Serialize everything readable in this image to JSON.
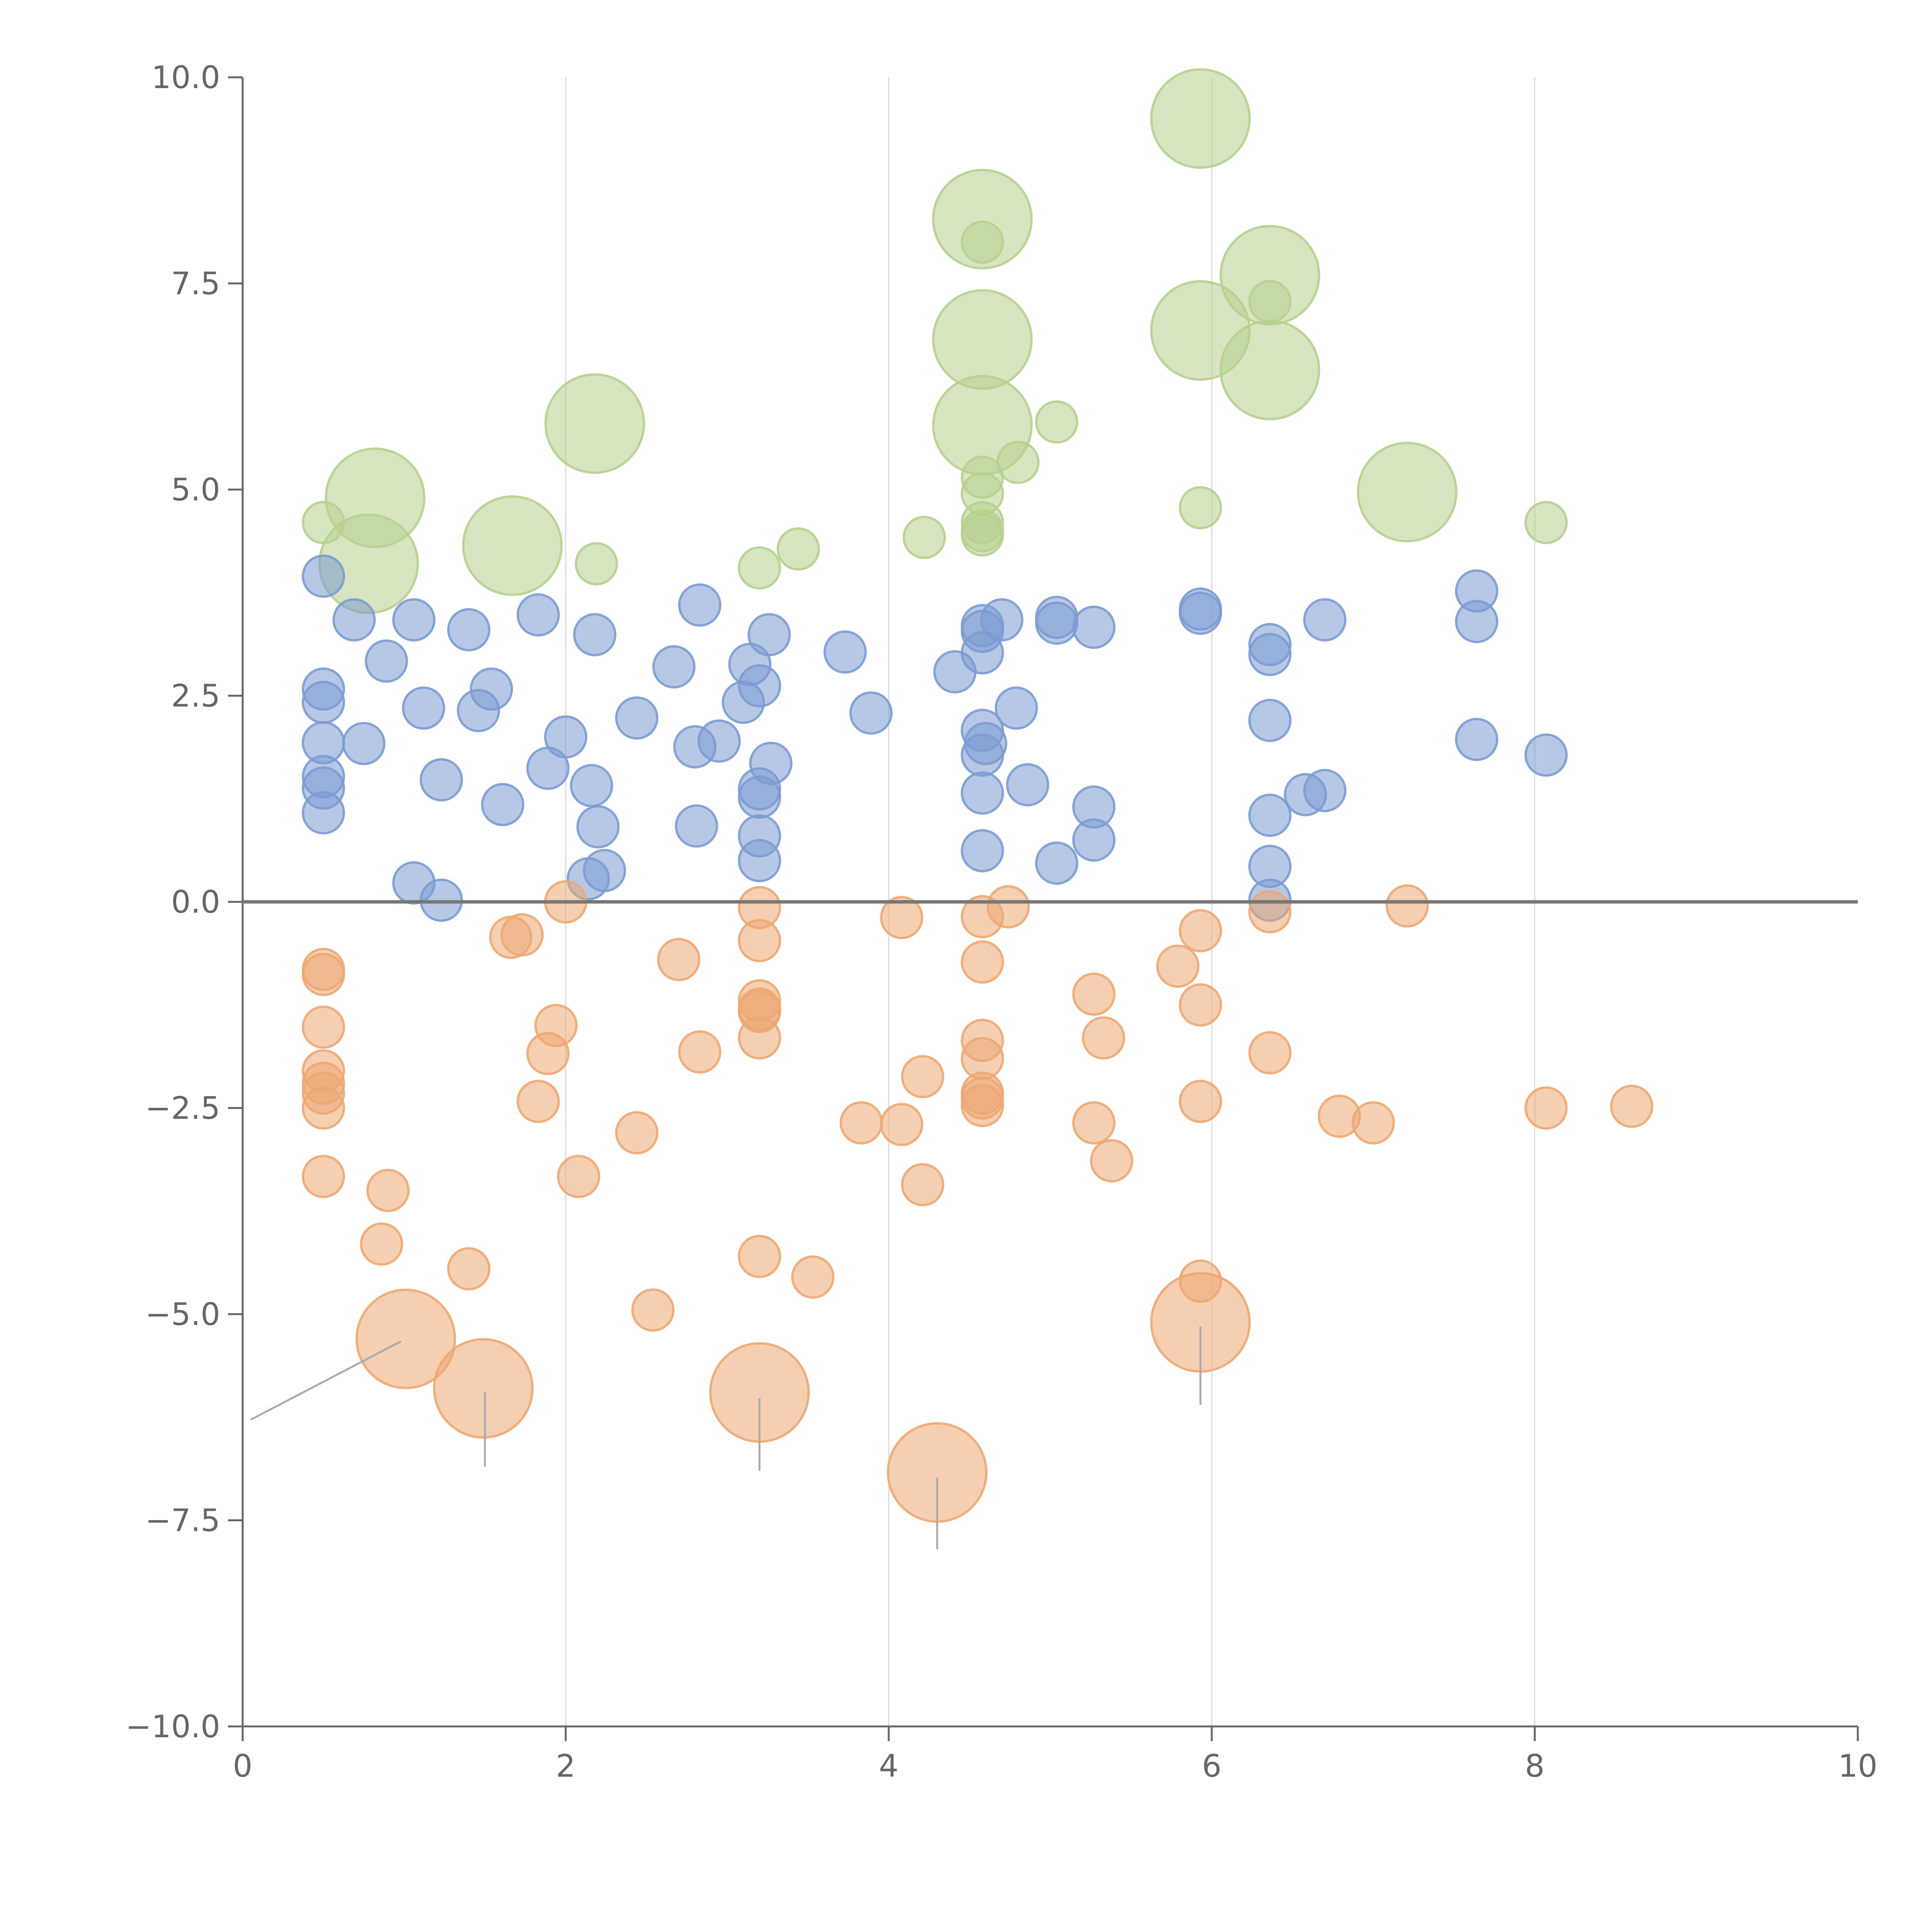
{
  "chart_data": {
    "type": "scatter",
    "title": "",
    "xlabel": "",
    "ylabel": "",
    "xlim": [
      0,
      10
    ],
    "ylim": [
      -10,
      10
    ],
    "grid": "vertical",
    "x_ticks": [
      "0",
      "2",
      "4",
      "6",
      "8",
      "10"
    ],
    "x_tick_values": [
      0,
      2,
      4,
      6,
      8,
      10
    ],
    "y_ticks": [
      "10.0",
      "7.5",
      "5.0",
      "2.5",
      "0.0",
      "−2.5",
      "−5.0",
      "−7.5",
      "−10.0"
    ],
    "y_tick_values": [
      10,
      7.5,
      5,
      2.5,
      0,
      -2.5,
      -5,
      -7.5,
      -10
    ],
    "reference_line_y": 0,
    "colors": {
      "green": "#b6d08e",
      "blue": "#7b9bd1",
      "orange": "#eda772",
      "axis": "#666666",
      "grid": "#d9d9d9",
      "zero_line": "#777777",
      "leader": "#aaaaaa"
    },
    "series": [
      {
        "name": "green",
        "color": "#b6d08e",
        "points": [
          [
            0.5,
            4.6,
            1
          ],
          [
            0.82,
            4.9,
            2.4
          ],
          [
            0.78,
            4.1,
            2.4
          ],
          [
            1.67,
            4.32,
            2.4
          ],
          [
            2.18,
            5.8,
            2.4
          ],
          [
            2.19,
            4.1,
            1
          ],
          [
            3.2,
            4.05,
            1
          ],
          [
            3.44,
            4.28,
            1
          ],
          [
            4.22,
            4.42,
            1
          ],
          [
            4.58,
            8.28,
            2.4
          ],
          [
            4.58,
            8.0,
            1
          ],
          [
            4.58,
            6.82,
            2.4
          ],
          [
            4.58,
            5.78,
            2.4
          ],
          [
            4.58,
            5.15,
            1
          ],
          [
            4.58,
            4.95,
            1
          ],
          [
            4.58,
            4.6,
            1
          ],
          [
            4.58,
            4.5,
            1
          ],
          [
            4.58,
            4.45,
            1
          ],
          [
            4.8,
            5.33,
            1
          ],
          [
            5.04,
            5.82,
            1
          ],
          [
            5.93,
            9.5,
            2.4
          ],
          [
            5.93,
            6.93,
            2.4
          ],
          [
            5.93,
            4.78,
            1
          ],
          [
            6.36,
            7.6,
            2.4
          ],
          [
            6.36,
            7.28,
            1
          ],
          [
            6.36,
            6.45,
            2.4
          ],
          [
            7.21,
            4.97,
            2.4
          ],
          [
            8.07,
            4.6,
            1
          ]
        ]
      },
      {
        "name": "blue",
        "color": "#7b9bd1",
        "points": [
          [
            0.5,
            3.95,
            1
          ],
          [
            0.5,
            2.58,
            1
          ],
          [
            0.5,
            2.42,
            1
          ],
          [
            0.5,
            1.93,
            1
          ],
          [
            0.5,
            1.52,
            1
          ],
          [
            0.5,
            1.38,
            1
          ],
          [
            0.5,
            1.08,
            1
          ],
          [
            0.69,
            3.42,
            1
          ],
          [
            0.75,
            1.92,
            1
          ],
          [
            0.89,
            2.92,
            1
          ],
          [
            1.06,
            3.42,
            1
          ],
          [
            1.06,
            0.23,
            1
          ],
          [
            1.12,
            2.35,
            1
          ],
          [
            1.23,
            1.48,
            1
          ],
          [
            1.23,
            0.02,
            1
          ],
          [
            1.4,
            3.3,
            1
          ],
          [
            1.46,
            2.32,
            1
          ],
          [
            1.54,
            2.58,
            1
          ],
          [
            1.61,
            1.18,
            1
          ],
          [
            1.83,
            3.48,
            1
          ],
          [
            1.89,
            1.62,
            1
          ],
          [
            2.0,
            2.0,
            1
          ],
          [
            2.14,
            0.28,
            1
          ],
          [
            2.16,
            1.41,
            1
          ],
          [
            2.18,
            3.24,
            1
          ],
          [
            2.2,
            0.91,
            1
          ],
          [
            2.24,
            0.38,
            1
          ],
          [
            2.44,
            2.23,
            1
          ],
          [
            2.67,
            2.85,
            1
          ],
          [
            2.8,
            1.88,
            1
          ],
          [
            2.81,
            0.92,
            1
          ],
          [
            2.83,
            3.6,
            1
          ],
          [
            2.95,
            1.95,
            1
          ],
          [
            3.1,
            2.42,
            1
          ],
          [
            3.14,
            2.88,
            1
          ],
          [
            3.2,
            2.62,
            1
          ],
          [
            3.2,
            1.37,
            1
          ],
          [
            3.2,
            1.27,
            1
          ],
          [
            3.2,
            0.8,
            1
          ],
          [
            3.2,
            0.5,
            1
          ],
          [
            3.26,
            3.24,
            1
          ],
          [
            3.27,
            1.68,
            1
          ],
          [
            3.73,
            3.03,
            1
          ],
          [
            3.89,
            2.29,
            1
          ],
          [
            4.41,
            2.79,
            1
          ],
          [
            4.58,
            3.35,
            1
          ],
          [
            4.58,
            3.28,
            1
          ],
          [
            4.58,
            3.02,
            1
          ],
          [
            4.58,
            2.08,
            1
          ],
          [
            4.6,
            1.92,
            1
          ],
          [
            4.58,
            1.78,
            1
          ],
          [
            4.58,
            1.32,
            1
          ],
          [
            4.58,
            0.62,
            1
          ],
          [
            4.7,
            3.42,
            1
          ],
          [
            4.79,
            2.35,
            1
          ],
          [
            4.86,
            1.42,
            1
          ],
          [
            5.04,
            3.45,
            1
          ],
          [
            5.04,
            3.38,
            1
          ],
          [
            5.04,
            0.47,
            1
          ],
          [
            5.27,
            3.33,
            1
          ],
          [
            5.27,
            1.15,
            1
          ],
          [
            5.27,
            0.75,
            1
          ],
          [
            5.93,
            3.55,
            1
          ],
          [
            5.93,
            3.5,
            1
          ],
          [
            6.36,
            3.12,
            1
          ],
          [
            6.36,
            3.0,
            1
          ],
          [
            6.36,
            2.2,
            1
          ],
          [
            6.36,
            1.05,
            1
          ],
          [
            6.36,
            0.43,
            1
          ],
          [
            6.36,
            0.02,
            1
          ],
          [
            6.58,
            1.3,
            1
          ],
          [
            6.7,
            3.42,
            1
          ],
          [
            6.7,
            1.35,
            1
          ],
          [
            7.64,
            3.77,
            1
          ],
          [
            7.64,
            3.4,
            1
          ],
          [
            7.64,
            1.97,
            1
          ],
          [
            8.07,
            1.78,
            1
          ]
        ]
      },
      {
        "name": "orange",
        "color": "#eda772",
        "points": [
          [
            0.5,
            -0.82,
            1
          ],
          [
            0.5,
            -0.88,
            1
          ],
          [
            0.5,
            -1.52,
            1
          ],
          [
            0.5,
            -2.05,
            1
          ],
          [
            0.5,
            -2.2,
            1
          ],
          [
            0.5,
            -2.32,
            1
          ],
          [
            0.5,
            -2.5,
            1
          ],
          [
            0.5,
            -3.33,
            1
          ],
          [
            0.86,
            -4.15,
            1
          ],
          [
            0.9,
            -3.5,
            1
          ],
          [
            1.01,
            -5.3,
            2.4
          ],
          [
            1.4,
            -4.45,
            1
          ],
          [
            1.49,
            -5.9,
            2.4
          ],
          [
            1.66,
            -0.43,
            1
          ],
          [
            1.73,
            -0.4,
            1
          ],
          [
            1.83,
            -2.42,
            1
          ],
          [
            1.89,
            -1.84,
            1
          ],
          [
            1.94,
            -1.5,
            1
          ],
          [
            2.0,
            0.0,
            1
          ],
          [
            2.08,
            -3.33,
            1
          ],
          [
            2.44,
            -2.8,
            1
          ],
          [
            2.54,
            -4.95,
            1
          ],
          [
            2.7,
            -0.7,
            1
          ],
          [
            2.83,
            -1.82,
            1
          ],
          [
            3.2,
            -0.07,
            1
          ],
          [
            3.2,
            -0.47,
            1
          ],
          [
            3.2,
            -1.2,
            1
          ],
          [
            3.2,
            -1.3,
            1
          ],
          [
            3.2,
            -1.33,
            1
          ],
          [
            3.2,
            -1.65,
            1
          ],
          [
            3.2,
            -4.3,
            1
          ],
          [
            3.2,
            -5.95,
            2.4
          ],
          [
            3.53,
            -4.55,
            1
          ],
          [
            3.83,
            -2.68,
            1
          ],
          [
            4.08,
            -0.19,
            1
          ],
          [
            4.08,
            -2.7,
            1
          ],
          [
            4.21,
            -2.12,
            1
          ],
          [
            4.21,
            -3.43,
            1
          ],
          [
            4.3,
            -6.92,
            2.4
          ],
          [
            4.58,
            -0.18,
            1
          ],
          [
            4.58,
            -0.73,
            1
          ],
          [
            4.58,
            -1.68,
            1
          ],
          [
            4.58,
            -1.9,
            1
          ],
          [
            4.58,
            -2.32,
            1
          ],
          [
            4.58,
            -2.38,
            1
          ],
          [
            4.58,
            -2.47,
            1
          ],
          [
            4.74,
            -0.06,
            1
          ],
          [
            5.27,
            -1.12,
            1
          ],
          [
            5.27,
            -2.68,
            1
          ],
          [
            5.33,
            -1.65,
            1
          ],
          [
            5.38,
            -3.14,
            1
          ],
          [
            5.79,
            -0.78,
            1
          ],
          [
            5.93,
            -0.35,
            1
          ],
          [
            5.93,
            -1.25,
            1
          ],
          [
            5.93,
            -2.42,
            1
          ],
          [
            5.93,
            -4.6,
            1
          ],
          [
            5.93,
            -5.1,
            2.4
          ],
          [
            6.36,
            -0.12,
            1
          ],
          [
            6.36,
            -1.83,
            1
          ],
          [
            6.79,
            -2.6,
            1
          ],
          [
            7.0,
            -2.68,
            1
          ],
          [
            7.21,
            -0.05,
            1
          ],
          [
            8.07,
            -2.5,
            1
          ],
          [
            8.6,
            -2.48,
            1
          ]
        ]
      }
    ],
    "leader_lines": [
      [
        0.98,
        -5.33,
        0.05,
        -6.28
      ],
      [
        1.5,
        -5.95,
        1.5,
        -6.85
      ],
      [
        3.2,
        -6.02,
        3.2,
        -6.9
      ],
      [
        4.3,
        -6.98,
        4.3,
        -7.85
      ],
      [
        5.93,
        -5.15,
        5.93,
        -6.1
      ]
    ]
  }
}
